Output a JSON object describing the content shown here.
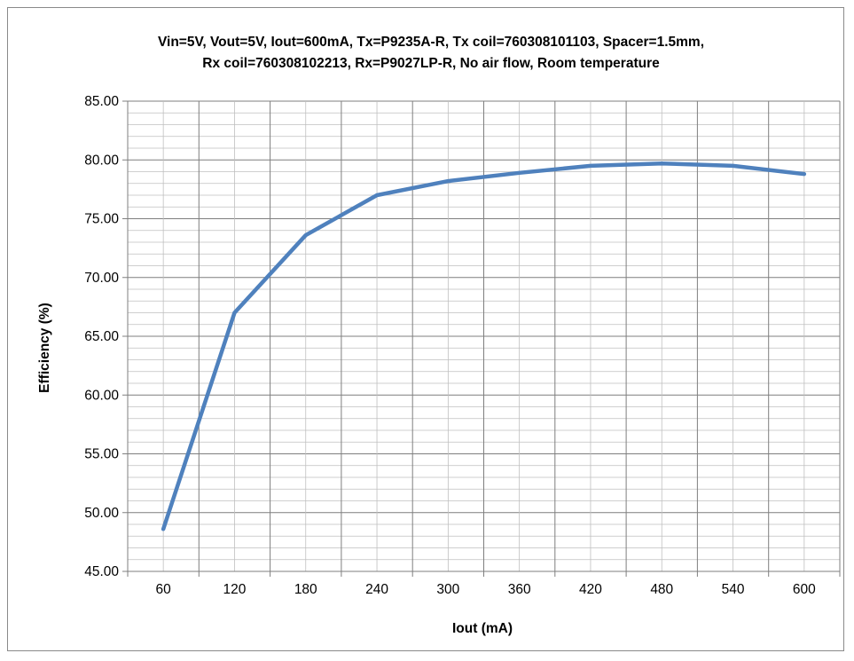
{
  "chart_data": {
    "type": "line",
    "title_lines": [
      "Vin=5V, Vout=5V, Iout=600mA, Tx=P9235A-R, Tx coil=760308101103, Spacer=1.5mm,",
      "Rx coil=760308102213, Rx=P9027LP-R, No air flow, Room temperature"
    ],
    "xlabel": "Iout (mA)",
    "ylabel": "Efficiency (%)",
    "x_ticks": [
      "60",
      "120",
      "180",
      "240",
      "300",
      "360",
      "420",
      "480",
      "540",
      "600"
    ],
    "y_ticks": [
      "45.00",
      "50.00",
      "55.00",
      "60.00",
      "65.00",
      "70.00",
      "75.00",
      "80.00",
      "85.00"
    ],
    "ylim": [
      45,
      85
    ],
    "grid": true,
    "series": [
      {
        "color": "#4f81bd",
        "x": [
          60,
          120,
          180,
          240,
          300,
          360,
          420,
          480,
          540,
          600
        ],
        "values": [
          48.6,
          67.0,
          73.6,
          77.0,
          78.2,
          78.9,
          79.5,
          79.7,
          79.5,
          78.8
        ]
      }
    ]
  }
}
